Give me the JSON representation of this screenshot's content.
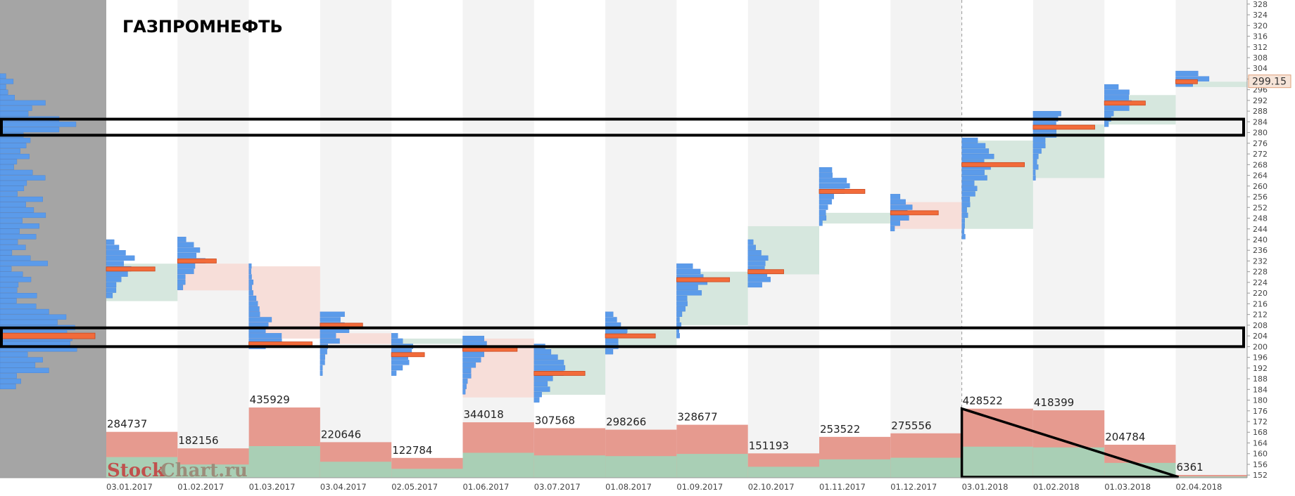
{
  "title": "ГАЗПРОМНЕФТЬ",
  "watermark": {
    "part1": "Stock",
    "part2": "Chart.ru"
  },
  "current_price": "299.15",
  "colors": {
    "profile_blue": "#5b9bea",
    "poc_orange": "#f26b3a",
    "va_green": "#d4e6dc",
    "va_red": "#f7dcd7",
    "vol_red": "#e69a8f",
    "vol_green": "#a9cfb5",
    "left_panel": "#a5a5a5",
    "stripe": "#f3f3f3"
  },
  "chart_data": {
    "type": "bar",
    "y_axis": {
      "ylim": [
        151,
        329
      ],
      "ticks": [
        152,
        156,
        160,
        164,
        168,
        172,
        176,
        180,
        184,
        188,
        192,
        196,
        200,
        204,
        208,
        212,
        216,
        220,
        224,
        228,
        232,
        236,
        240,
        244,
        248,
        252,
        256,
        260,
        264,
        268,
        272,
        276,
        280,
        284,
        288,
        292,
        296,
        300,
        304,
        308,
        312,
        316,
        320,
        324,
        328
      ]
    },
    "months": [
      {
        "date": "03.01.2017",
        "volume": "284737",
        "vol": 284737,
        "lo": 217,
        "hi": 231,
        "poc": 229,
        "dir": "up",
        "prof_lo": 218,
        "prof_hi": 239
      },
      {
        "date": "01.02.2017",
        "volume": "182156",
        "vol": 182156,
        "lo": 221,
        "hi": 231,
        "poc": 232,
        "dir": "down",
        "prof_lo": 221,
        "prof_hi": 239
      },
      {
        "date": "01.03.2017",
        "volume": "435929",
        "vol": 435929,
        "lo": 203,
        "hi": 230,
        "poc": 201,
        "dir": "down",
        "prof_lo": 199,
        "prof_hi": 230
      },
      {
        "date": "03.04.2017",
        "volume": "220646",
        "vol": 220646,
        "lo": 201,
        "hi": 205,
        "poc": 208,
        "dir": "down",
        "prof_lo": 189,
        "prof_hi": 212
      },
      {
        "date": "02.05.2017",
        "volume": "122784",
        "vol": 122784,
        "lo": 201,
        "hi": 203,
        "poc": 197,
        "dir": "up",
        "prof_lo": 189,
        "prof_hi": 203
      },
      {
        "date": "01.06.2017",
        "volume": "344018",
        "vol": 344018,
        "lo": 181,
        "hi": 203,
        "poc": 199,
        "dir": "down",
        "prof_lo": 182,
        "prof_hi": 203
      },
      {
        "date": "03.07.2017",
        "volume": "307568",
        "vol": 307568,
        "lo": 182,
        "hi": 200,
        "poc": 190,
        "dir": "up",
        "prof_lo": 179,
        "prof_hi": 200
      },
      {
        "date": "01.08.2017",
        "volume": "298266",
        "vol": 298266,
        "lo": 200,
        "hi": 207,
        "poc": 204,
        "dir": "up",
        "prof_lo": 197,
        "prof_hi": 211
      },
      {
        "date": "01.09.2017",
        "volume": "328677",
        "vol": 328677,
        "lo": 208,
        "hi": 228,
        "poc": 225,
        "dir": "up",
        "prof_lo": 203,
        "prof_hi": 229
      },
      {
        "date": "02.10.2017",
        "volume": "151193",
        "vol": 151193,
        "lo": 227,
        "hi": 245,
        "poc": 228,
        "dir": "up",
        "prof_lo": 222,
        "prof_hi": 238
      },
      {
        "date": "01.11.2017",
        "volume": "253522",
        "vol": 253522,
        "lo": 246,
        "hi": 250,
        "poc": 258,
        "dir": "up",
        "prof_lo": 245,
        "prof_hi": 265
      },
      {
        "date": "01.12.2017",
        "volume": "275556",
        "vol": 275556,
        "lo": 244,
        "hi": 254,
        "poc": 250,
        "dir": "down",
        "prof_lo": 243,
        "prof_hi": 256
      },
      {
        "date": "03.01.2018",
        "volume": "428522",
        "vol": 428522,
        "lo": 244,
        "hi": 277,
        "poc": 268,
        "dir": "up",
        "prof_lo": 240,
        "prof_hi": 276
      },
      {
        "date": "01.02.2018",
        "volume": "418399",
        "vol": 418399,
        "lo": 263,
        "hi": 283,
        "poc": 282,
        "dir": "up",
        "prof_lo": 262,
        "prof_hi": 287
      },
      {
        "date": "01.03.2018",
        "volume": "204784",
        "vol": 204784,
        "lo": 283,
        "hi": 294,
        "poc": 291,
        "dir": "up",
        "prof_lo": 282,
        "prof_hi": 296
      },
      {
        "date": "02.04.2018",
        "volume": "6361",
        "vol": 6361,
        "lo": 297,
        "hi": 299,
        "poc": 299,
        "dir": "up",
        "prof_lo": 297,
        "prof_hi": 301
      }
    ],
    "highlight_zones": [
      {
        "name": "upper-zone",
        "lo": 279,
        "hi": 285
      },
      {
        "name": "lower-zone",
        "lo": 200,
        "hi": 207
      }
    ],
    "trend_triangle": {
      "from_month": 12,
      "to_month": 15,
      "vol_from": 428522,
      "vol_to": 6361
    },
    "left_profile": {
      "lo": 184,
      "hi": 300,
      "poc": 204,
      "poc_len": 115,
      "peak_upper": 282
    }
  }
}
